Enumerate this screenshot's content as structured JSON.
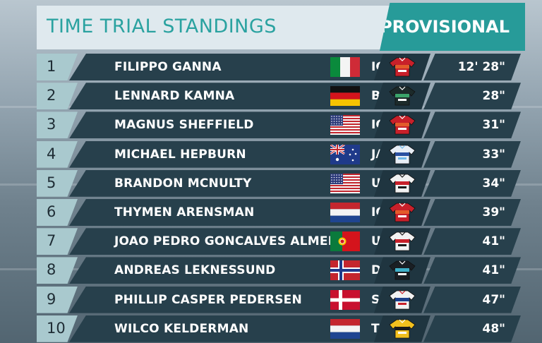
{
  "header": {
    "title": "TIME TRIAL STANDINGS",
    "status": "PROVISIONAL",
    "accent_color": "#279b99"
  },
  "standings": [
    {
      "rank": "1",
      "name": "FILIPPO GANNA",
      "flag": "it",
      "team": "IGD",
      "jersey": "ineos-red",
      "time": "12' 28\""
    },
    {
      "rank": "2",
      "name": "LENNARD KAMNA",
      "flag": "de",
      "team": "BOH",
      "jersey": "bora-dark",
      "time": "28\""
    },
    {
      "rank": "3",
      "name": "MAGNUS SHEFFIELD",
      "flag": "us",
      "team": "IGD",
      "jersey": "ineos-red",
      "time": "31\""
    },
    {
      "rank": "4",
      "name": "MICHAEL HEPBURN",
      "flag": "au",
      "team": "JAY",
      "jersey": "jayco-white",
      "time": "33\""
    },
    {
      "rank": "5",
      "name": "BRANDON MCNULTY",
      "flag": "us",
      "team": "UAD",
      "jersey": "uae-white",
      "time": "34\""
    },
    {
      "rank": "6",
      "name": "THYMEN ARENSMAN",
      "flag": "nl",
      "team": "IGD",
      "jersey": "ineos-red",
      "time": "39\""
    },
    {
      "rank": "7",
      "name": "JOAO PEDRO GONCALVES ALMEIDA",
      "flag": "pt",
      "team": "UAD",
      "jersey": "uae-white",
      "time": "41\""
    },
    {
      "rank": "8",
      "name": "ANDREAS LEKNESSUND",
      "flag": "no",
      "team": "DSM",
      "jersey": "dsm-black",
      "time": "41\""
    },
    {
      "rank": "9",
      "name": "PHILLIP CASPER PEDERSEN",
      "flag": "dk",
      "team": "SOQ",
      "jersey": "soudal-blue",
      "time": "47\""
    },
    {
      "rank": "10",
      "name": "WILCO KELDERMAN",
      "flag": "nl",
      "team": "TJV",
      "jersey": "jumbo-yellow",
      "time": "48\""
    }
  ]
}
